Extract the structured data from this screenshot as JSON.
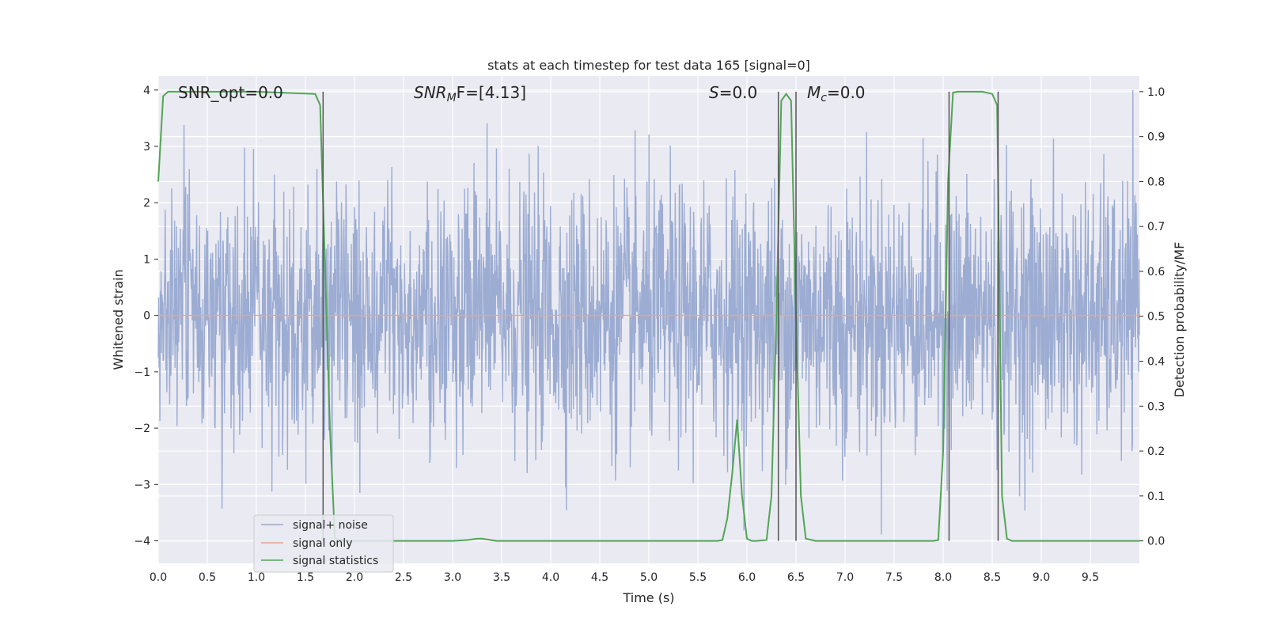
{
  "chart_data": {
    "type": "line",
    "title": "stats at each timestep for test data 165 [signal=0]",
    "xlabel": "Time (s)",
    "ylabel": "Whitened strain",
    "ylabel_right": "Detection probability/MF",
    "xlim": [
      0,
      10
    ],
    "ylim": [
      -4.4,
      4.25
    ],
    "ylim_right": [
      -0.05,
      1.035
    ],
    "x_ticks": [
      0.0,
      0.5,
      1.0,
      1.5,
      2.0,
      2.5,
      3.0,
      3.5,
      4.0,
      4.5,
      5.0,
      5.5,
      6.0,
      6.5,
      7.0,
      7.5,
      8.0,
      8.5,
      9.0,
      9.5
    ],
    "x_tick_labels": [
      "0.0",
      "0.5",
      "1.0",
      "1.5",
      "2.0",
      "2.5",
      "3.0",
      "3.5",
      "4.0",
      "4.5",
      "5.0",
      "5.5",
      "6.0",
      "6.5",
      "7.0",
      "7.5",
      "8.0",
      "8.5",
      "9.0",
      "9.5"
    ],
    "y_ticks": [
      4,
      3,
      2,
      1,
      0,
      -1,
      -2,
      -3,
      -4
    ],
    "y_tick_labels": [
      "4",
      "3",
      "2",
      "1",
      "0",
      "−1",
      "−2",
      "−3",
      "−4"
    ],
    "y_right_ticks": [
      1.0,
      0.9,
      0.8,
      0.7,
      0.6,
      0.5,
      0.4,
      0.3,
      0.2,
      0.1,
      0.0
    ],
    "y_right_tick_labels": [
      "1.0",
      "0.9",
      "0.8",
      "0.7",
      "0.6",
      "0.5",
      "0.4",
      "0.3",
      "0.2",
      "0.1",
      "0.0"
    ],
    "grid": true,
    "legend": "lower-left",
    "annotations": {
      "snr_opt": "SNR_opt=0.0",
      "snr_mf_label": "SNR",
      "snr_mf_sub": "M",
      "snr_mf_rest": "F=[4.13]",
      "s_label": "S",
      "s_rest": "=0.0",
      "mc_label": "M",
      "mc_sub": "c",
      "mc_rest": "=0.0"
    },
    "series": [
      {
        "name": "signal+ noise",
        "color": "#98a9d0",
        "axis": "left",
        "envelope": {
          "typical_amplitude": 1.6,
          "max_positive": 4.0,
          "min_negative": -4.05
        }
      },
      {
        "name": "signal only",
        "color": "#e9a389",
        "axis": "left",
        "x": [
          0,
          10
        ],
        "y": [
          0,
          0
        ]
      },
      {
        "name": "signal statistics",
        "color": "#52a556",
        "axis": "right",
        "x": [
          0.0,
          0.05,
          0.1,
          1.0,
          1.6,
          1.65,
          1.75,
          1.8,
          1.9,
          3.0,
          3.15,
          3.25,
          3.3,
          3.45,
          5.7,
          5.75,
          5.8,
          5.85,
          5.9,
          5.95,
          6.0,
          6.05,
          6.1,
          6.2,
          6.25,
          6.3,
          6.35,
          6.4,
          6.45,
          6.5,
          6.55,
          6.6,
          6.7,
          7.9,
          7.95,
          8.0,
          8.05,
          8.1,
          8.15,
          8.4,
          8.5,
          8.55,
          8.6,
          8.65,
          8.7,
          10.0
        ],
        "y": [
          0.8,
          0.99,
          1.0,
          1.0,
          0.995,
          0.97,
          0.25,
          0.005,
          0.0,
          0.0,
          0.002,
          0.005,
          0.005,
          0.0,
          0.0,
          0.002,
          0.05,
          0.15,
          0.27,
          0.1,
          0.005,
          0.0,
          0.0,
          0.002,
          0.1,
          0.5,
          0.98,
          0.995,
          0.98,
          0.5,
          0.1,
          0.005,
          0.0,
          0.0,
          0.002,
          0.2,
          0.8,
          0.998,
          1.0,
          1.0,
          0.995,
          0.97,
          0.1,
          0.005,
          0.0,
          0.0
        ]
      }
    ],
    "vertical_lines": {
      "color": "#555555",
      "x": [
        1.68,
        6.32,
        6.5,
        8.06,
        8.56
      ]
    }
  }
}
